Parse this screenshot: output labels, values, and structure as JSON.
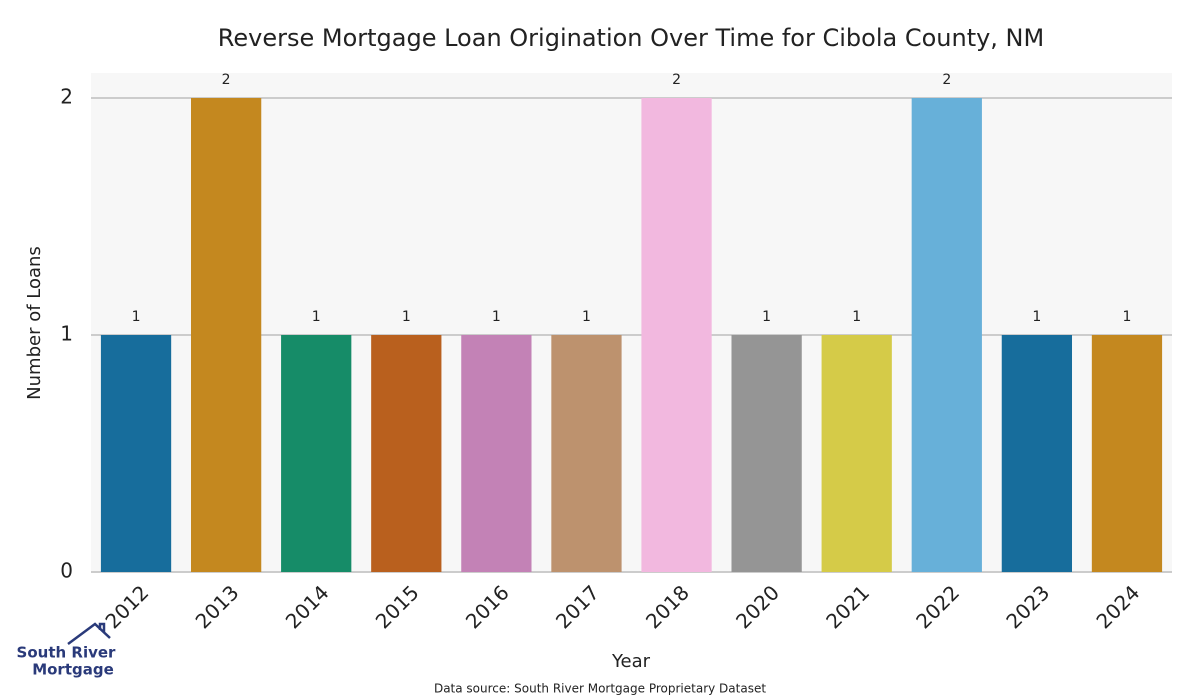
{
  "chart_data": {
    "type": "bar",
    "title": "Reverse Mortgage Loan Origination Over Time for Cibola County, NM",
    "x_label": "Year",
    "y_label": "Number of Loans",
    "categories": [
      "2012",
      "2013",
      "2014",
      "2015",
      "2016",
      "2017",
      "2018",
      "2020",
      "2021",
      "2022",
      "2023",
      "2024"
    ],
    "values": [
      1,
      2,
      1,
      1,
      1,
      1,
      2,
      1,
      1,
      2,
      1,
      1
    ],
    "colors": [
      "#176d9c",
      "#c4881f",
      "#168c68",
      "#b9601e",
      "#c382b6",
      "#bd926e",
      "#f2b8df",
      "#959595",
      "#d5cb48",
      "#67b0d9",
      "#176d9c",
      "#c4881f"
    ],
    "ylim": [
      0,
      2
    ],
    "yticks": [
      0,
      1,
      2
    ],
    "grid": true,
    "source": "Data source: South River Mortgage Proprietary Dataset"
  },
  "logo": {
    "line1": "South River",
    "line2": "Mortgage"
  }
}
